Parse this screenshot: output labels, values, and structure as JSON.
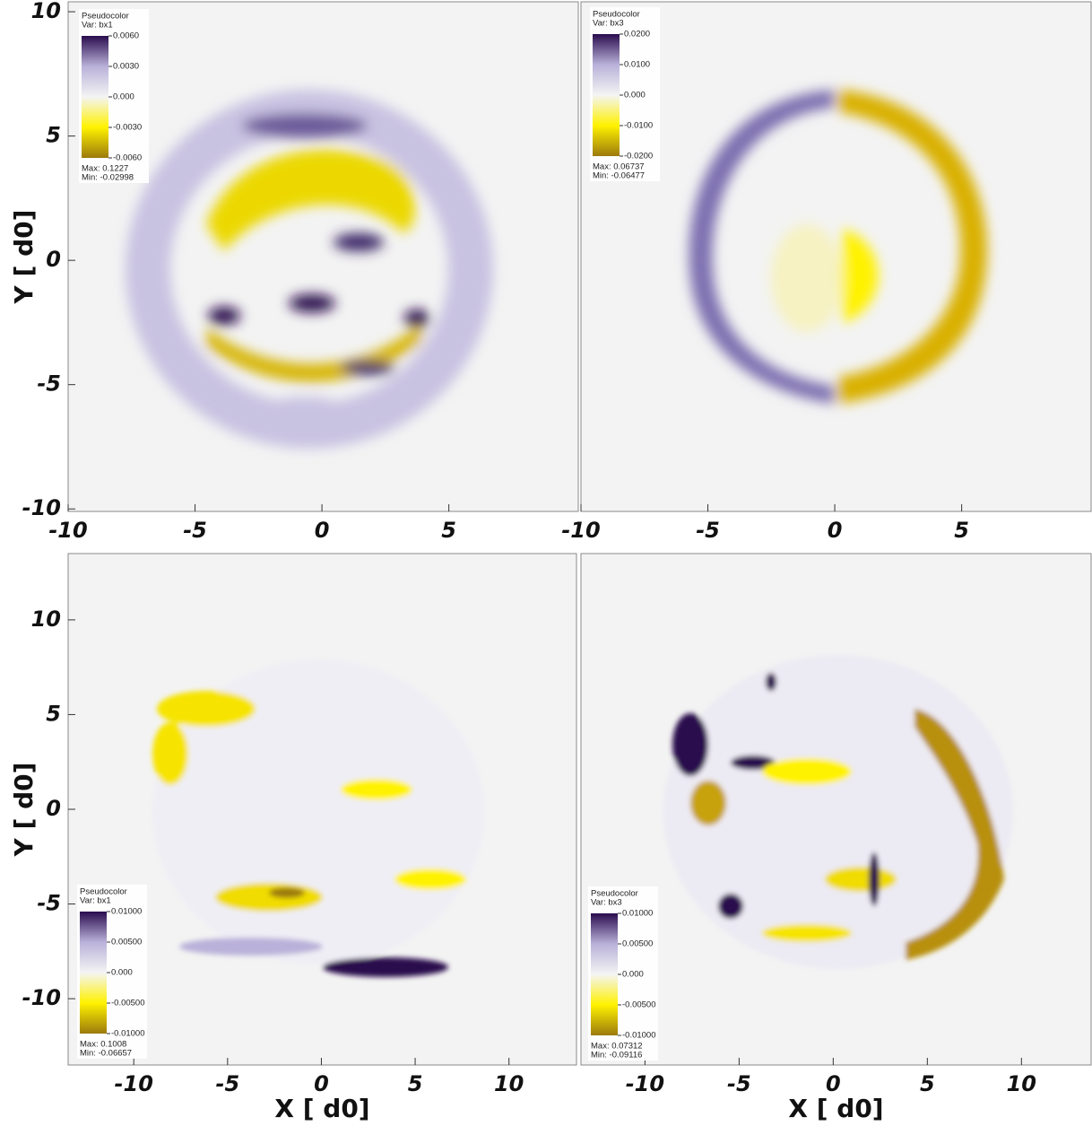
{
  "chart_data": [
    {
      "type": "heatmap",
      "xlim": [
        -10,
        10.1
      ],
      "ylim": [
        -10.1,
        10.4
      ],
      "xticks": [
        -10,
        -5,
        0,
        5
      ],
      "yticks": [
        -10,
        -5,
        0,
        5,
        10
      ],
      "y_label": "Y [ d0]",
      "colormap": [
        "#2a0c4e",
        "#b9b1d9",
        "#f4f4f4",
        "#fff200",
        "#9c7a0c"
      ],
      "colorbar": {
        "title": "Pseudocolor",
        "var": "Var: bx1",
        "ticks": [
          {
            "value": 0.006,
            "label": "0.0060"
          },
          {
            "value": 0.003,
            "label": "0.0030"
          },
          {
            "value": 0,
            "label": "0.000"
          },
          {
            "value": -0.003,
            "label": "-0.0030"
          },
          {
            "value": -0.006,
            "label": "-0.0060"
          }
        ],
        "max": "Max:  0.1227",
        "min": "Min:  -0.02998"
      }
    },
    {
      "type": "heatmap",
      "xlim": [
        -10,
        10.1
      ],
      "xticks": [
        -10,
        -5,
        0,
        5
      ],
      "colormap": [
        "#2a0c4e",
        "#b9b1d9",
        "#f4f4f4",
        "#fff200",
        "#9c7a0c"
      ],
      "colorbar": {
        "title": "Pseudocolor",
        "var": "Var: bx3",
        "ticks": [
          {
            "value": 0.02,
            "label": "0.0200"
          },
          {
            "value": 0.01,
            "label": "0.0100"
          },
          {
            "value": 0,
            "label": "0.000"
          },
          {
            "value": -0.01,
            "label": "-0.0100"
          },
          {
            "value": -0.02,
            "label": "-0.0200"
          }
        ],
        "max": "Max:  0.06737",
        "min": "Min:  -0.06477"
      }
    },
    {
      "type": "heatmap",
      "xlim": [
        -13.5,
        13.6
      ],
      "ylim": [
        -13.5,
        13.5
      ],
      "xticks": [
        -10,
        -5,
        0,
        5,
        10
      ],
      "yticks": [
        -10,
        -5,
        0,
        5,
        10
      ],
      "x_label": "X [ d0]",
      "y_label": "Y [ d0]",
      "colormap": [
        "#2a0c4e",
        "#b9b1d9",
        "#f4f4f4",
        "#fff200",
        "#9c7a0c"
      ],
      "colorbar": {
        "title": "Pseudocolor",
        "var": "Var: bx1",
        "ticks": [
          {
            "value": 0.01,
            "label": "0.01000"
          },
          {
            "value": 0.005,
            "label": "0.00500"
          },
          {
            "value": 0,
            "label": "0.000"
          },
          {
            "value": -0.005,
            "label": "-0.00500"
          },
          {
            "value": -0.01,
            "label": "-0.01000"
          }
        ],
        "max": "Max:  0.1008",
        "min": "Min:  -0.06657"
      }
    },
    {
      "type": "heatmap",
      "xlim": [
        -13.4,
        13.7
      ],
      "xticks": [
        -10,
        -5,
        0,
        5,
        10
      ],
      "x_label": "X [ d0]",
      "colormap": [
        "#2a0c4e",
        "#b9b1d9",
        "#f4f4f4",
        "#fff200",
        "#9c7a0c"
      ],
      "colorbar": {
        "title": "Pseudocolor",
        "var": "Var: bx3",
        "ticks": [
          {
            "value": 0.01,
            "label": "0.01000"
          },
          {
            "value": 0.005,
            "label": "0.00500"
          },
          {
            "value": 0,
            "label": "0.000"
          },
          {
            "value": -0.005,
            "label": "-0.00500"
          },
          {
            "value": -0.01,
            "label": "-0.01000"
          }
        ],
        "max": "Max:  0.07312",
        "min": "Min:  -0.09116"
      }
    }
  ]
}
